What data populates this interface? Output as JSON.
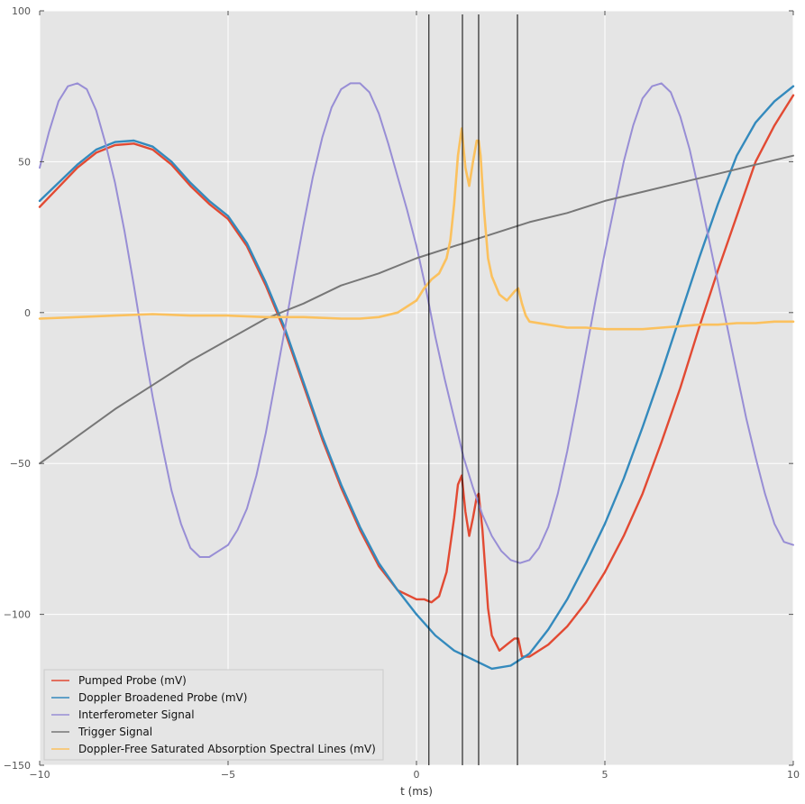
{
  "chart_data": {
    "type": "line",
    "title": "",
    "xlabel": "t (ms)",
    "ylabel": "",
    "xlim": [
      -10,
      10
    ],
    "ylim": [
      -150,
      100
    ],
    "x_ticks": [
      -10,
      -5,
      0,
      5,
      10
    ],
    "x_tick_labels": [
      "−10",
      "−5",
      "0",
      "5",
      "10"
    ],
    "y_ticks": [
      -150,
      -100,
      -50,
      0,
      50,
      100
    ],
    "y_tick_labels": [
      "−150",
      "−100",
      "−50",
      "0",
      "50",
      "100"
    ],
    "grid": true,
    "legend_position": "lower-left",
    "background": "#e5e5e5",
    "vertical_lines": [
      0.33,
      1.22,
      1.65,
      2.68
    ],
    "series": [
      {
        "name": "Pumped Probe (mV)",
        "color": "#e24a33",
        "x": [
          -10,
          -9,
          -8.5,
          -8,
          -7.5,
          -7,
          -6.5,
          -6,
          -5.5,
          -5,
          -4.5,
          -4,
          -3.5,
          -3,
          -2.5,
          -2,
          -1.5,
          -1,
          -0.5,
          0,
          0.2,
          0.4,
          0.6,
          0.8,
          1.0,
          1.1,
          1.2,
          1.3,
          1.4,
          1.5,
          1.6,
          1.65,
          1.75,
          1.9,
          2.0,
          2.2,
          2.4,
          2.6,
          2.7,
          2.8,
          3.0,
          3.5,
          4,
          4.5,
          5,
          5.5,
          6,
          6.5,
          7,
          7.5,
          8,
          8.5,
          9,
          9.5,
          10
        ],
        "values": [
          35,
          48,
          53,
          55.5,
          56,
          54,
          49,
          42,
          36,
          31,
          22,
          9,
          -6,
          -24,
          -42,
          -58,
          -72,
          -84,
          -92,
          -95,
          -95,
          -96,
          -94,
          -86,
          -68,
          -57,
          -54,
          -66,
          -74,
          -68,
          -61,
          -60,
          -72,
          -98,
          -107,
          -112,
          -110,
          -108,
          -108,
          -114,
          -114,
          -110,
          -104,
          -96,
          -86,
          -74,
          -60,
          -43,
          -25,
          -5,
          14,
          32,
          50,
          62,
          72
        ]
      },
      {
        "name": "Doppler Broadened Probe (mV)",
        "color": "#348abd",
        "x": [
          -10,
          -9,
          -8.5,
          -8,
          -7.5,
          -7,
          -6.5,
          -6,
          -5.5,
          -5,
          -4.5,
          -4,
          -3.5,
          -3,
          -2.5,
          -2,
          -1.5,
          -1,
          -0.5,
          0,
          0.5,
          1,
          1.5,
          2,
          2.5,
          3,
          3.5,
          4,
          4.5,
          5,
          5.5,
          6,
          6.5,
          7,
          7.5,
          8,
          8.5,
          9,
          9.5,
          10
        ],
        "values": [
          37,
          49,
          54,
          56.5,
          57,
          55,
          50,
          43,
          37,
          32,
          23,
          10,
          -5,
          -23,
          -41,
          -57,
          -71,
          -83,
          -92,
          -100,
          -107,
          -112,
          -115,
          -118,
          -117,
          -113,
          -105,
          -95,
          -83,
          -70,
          -55,
          -38,
          -20,
          -1,
          18,
          36,
          52,
          63,
          70,
          75
        ]
      },
      {
        "name": "Interferometer Signal",
        "color": "#988ed5",
        "x": [
          -10,
          -9.75,
          -9.5,
          -9.25,
          -9,
          -8.75,
          -8.5,
          -8.25,
          -8,
          -7.75,
          -7.5,
          -7.25,
          -7,
          -6.75,
          -6.5,
          -6.25,
          -6,
          -5.75,
          -5.5,
          -5.25,
          -5,
          -4.75,
          -4.5,
          -4.25,
          -4,
          -3.75,
          -3.5,
          -3.25,
          -3,
          -2.75,
          -2.5,
          -2.25,
          -2,
          -1.75,
          -1.5,
          -1.25,
          -1,
          -0.75,
          -0.5,
          -0.25,
          0,
          0.25,
          0.5,
          0.75,
          1,
          1.25,
          1.5,
          1.75,
          2,
          2.25,
          2.5,
          2.75,
          3,
          3.25,
          3.5,
          3.75,
          4,
          4.25,
          4.5,
          4.75,
          5,
          5.25,
          5.5,
          5.75,
          6,
          6.25,
          6.5,
          6.75,
          7,
          7.25,
          7.5,
          7.75,
          8,
          8.25,
          8.5,
          8.75,
          9,
          9.25,
          9.5,
          9.75,
          10
        ],
        "values": [
          48,
          60,
          70,
          75,
          76,
          74,
          67,
          56,
          43,
          27,
          9,
          -10,
          -28,
          -44,
          -59,
          -70,
          -78,
          -81,
          -81,
          -79,
          -77,
          -72,
          -65,
          -54,
          -40,
          -23,
          -6,
          12,
          29,
          45,
          58,
          68,
          74,
          76,
          76,
          73,
          66,
          56,
          45,
          34,
          22,
          8,
          -8,
          -22,
          -35,
          -48,
          -58,
          -67,
          -74,
          -79,
          -82,
          -83,
          -82,
          -78,
          -71,
          -60,
          -46,
          -30,
          -13,
          4,
          20,
          35,
          50,
          62,
          71,
          75,
          76,
          73,
          65,
          54,
          40,
          25,
          10,
          -5,
          -20,
          -35,
          -48,
          -60,
          -70,
          -76,
          -77
        ]
      },
      {
        "name": "Trigger Signal",
        "color": "#777777",
        "x": [
          -10,
          -9,
          -8,
          -7,
          -6,
          -5,
          -4,
          -3,
          -2,
          -1,
          0,
          1,
          2,
          3,
          4,
          5,
          6,
          7,
          8,
          9,
          10
        ],
        "values": [
          -50,
          -41,
          -32,
          -24,
          -16,
          -9,
          -2,
          3,
          9,
          13,
          18,
          22,
          26,
          30,
          33,
          37,
          40,
          43,
          46,
          49,
          52
        ]
      },
      {
        "name": "Doppler-Free Saturated Absorption Spectral Lines (mV)",
        "color": "#fbc15e",
        "x": [
          -10,
          -9,
          -8,
          -7,
          -6,
          -5,
          -4,
          -3,
          -2,
          -1.5,
          -1,
          -0.5,
          0,
          0.2,
          0.4,
          0.6,
          0.8,
          0.9,
          1.0,
          1.1,
          1.2,
          1.3,
          1.4,
          1.5,
          1.6,
          1.65,
          1.7,
          1.8,
          1.9,
          2.0,
          2.2,
          2.4,
          2.6,
          2.7,
          2.8,
          2.9,
          3.0,
          3.5,
          4,
          4.5,
          5,
          5.5,
          6,
          6.5,
          7,
          7.5,
          8,
          8.5,
          9,
          9.5,
          10
        ],
        "values": [
          -2,
          -1.5,
          -1,
          -0.5,
          -1,
          -1,
          -1.5,
          -1.5,
          -2,
          -2,
          -1.5,
          0,
          4,
          8,
          11,
          13,
          18,
          24,
          36,
          52,
          61,
          48,
          42,
          50,
          57,
          57,
          52,
          33,
          18,
          12,
          6,
          4,
          7,
          8,
          3,
          -1,
          -3,
          -4,
          -5,
          -5,
          -5.5,
          -5.5,
          -5.5,
          -5,
          -4.5,
          -4,
          -4,
          -3.5,
          -3.5,
          -3,
          -3
        ]
      }
    ]
  }
}
